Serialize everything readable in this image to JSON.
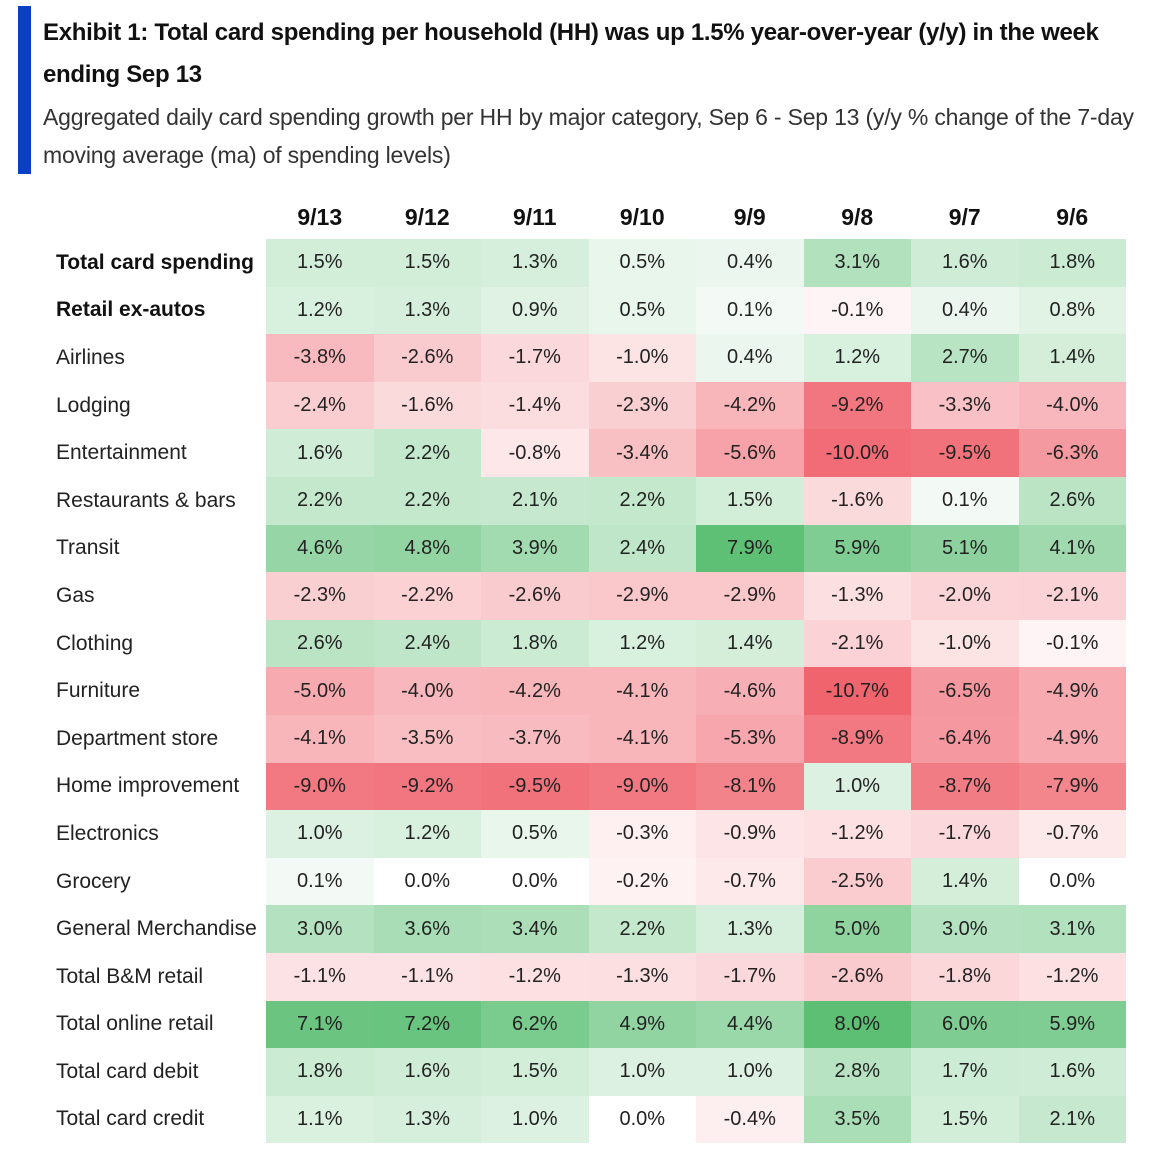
{
  "header": {
    "title": "Exhibit 1: Total card spending per household (HH) was up 1.5% year-over-year (y/y) in the week ending Sep 13",
    "subtitle": "Aggregated daily card spending growth per HH by major category, Sep 6 - Sep 13 (y/y % change of the 7-day moving average (ma) of spending levels)",
    "accent_color": "#0b3fc8"
  },
  "colors": {
    "positive_max": "#5cbf74",
    "negative_max": "#f0646e",
    "neutral": "#ffffff"
  },
  "chart_data": {
    "type": "heatmap",
    "title": "Exhibit 1: Total card spending per household (HH) was up 1.5% year-over-year (y/y) in the week ending Sep 13",
    "subtitle": "Aggregated daily card spending growth per HH by major category, Sep 6 - Sep 13 (y/y % change of the 7-day moving average (ma) of spending levels)",
    "columns": [
      "9/13",
      "9/12",
      "9/11",
      "9/10",
      "9/9",
      "9/8",
      "9/7",
      "9/6"
    ],
    "unit": "%",
    "rows": [
      {
        "label": "Total card spending",
        "bold": true,
        "values": [
          1.5,
          1.5,
          1.3,
          0.5,
          0.4,
          3.1,
          1.6,
          1.8
        ]
      },
      {
        "label": "Retail ex-autos",
        "bold": true,
        "values": [
          1.2,
          1.3,
          0.9,
          0.5,
          0.1,
          -0.1,
          0.4,
          0.8
        ]
      },
      {
        "label": "Airlines",
        "values": [
          -3.8,
          -2.6,
          -1.7,
          -1.0,
          0.4,
          1.2,
          2.7,
          1.4
        ]
      },
      {
        "label": "Lodging",
        "values": [
          -2.4,
          -1.6,
          -1.4,
          -2.3,
          -4.2,
          -9.2,
          -3.3,
          -4.0
        ]
      },
      {
        "label": "Entertainment",
        "values": [
          1.6,
          2.2,
          -0.8,
          -3.4,
          -5.6,
          -10.0,
          -9.5,
          -6.3
        ]
      },
      {
        "label": "Restaurants & bars",
        "values": [
          2.2,
          2.2,
          2.1,
          2.2,
          1.5,
          -1.6,
          0.1,
          2.6
        ]
      },
      {
        "label": "Transit",
        "values": [
          4.6,
          4.8,
          3.9,
          2.4,
          7.9,
          5.9,
          5.1,
          4.1
        ]
      },
      {
        "label": "Gas",
        "values": [
          -2.3,
          -2.2,
          -2.6,
          -2.9,
          -2.9,
          -1.3,
          -2.0,
          -2.1
        ]
      },
      {
        "label": "Clothing",
        "values": [
          2.6,
          2.4,
          1.8,
          1.2,
          1.4,
          -2.1,
          -1.0,
          -0.1
        ]
      },
      {
        "label": "Furniture",
        "values": [
          -5.0,
          -4.0,
          -4.2,
          -4.1,
          -4.6,
          -10.7,
          -6.5,
          -4.9
        ]
      },
      {
        "label": "Department store",
        "values": [
          -4.1,
          -3.5,
          -3.7,
          -4.1,
          -5.3,
          -8.9,
          -6.4,
          -4.9
        ]
      },
      {
        "label": "Home improvement",
        "values": [
          -9.0,
          -9.2,
          -9.5,
          -9.0,
          -8.1,
          1.0,
          -8.7,
          -7.9
        ]
      },
      {
        "label": "Electronics",
        "values": [
          1.0,
          1.2,
          0.5,
          -0.3,
          -0.9,
          -1.2,
          -1.7,
          -0.7
        ]
      },
      {
        "label": "Grocery",
        "values": [
          0.1,
          0.0,
          0.0,
          -0.2,
          -0.7,
          -2.5,
          1.4,
          0.0
        ]
      },
      {
        "label": "General Merchandise",
        "values": [
          3.0,
          3.6,
          3.4,
          2.2,
          1.3,
          5.0,
          3.0,
          3.1
        ]
      },
      {
        "label": "Total B&M retail",
        "values": [
          -1.1,
          -1.1,
          -1.2,
          -1.3,
          -1.7,
          -2.6,
          -1.8,
          -1.2
        ]
      },
      {
        "label": "Total online retail",
        "values": [
          7.1,
          7.2,
          6.2,
          4.9,
          4.4,
          8.0,
          6.0,
          5.9
        ]
      },
      {
        "label": "Total card debit",
        "values": [
          1.8,
          1.6,
          1.5,
          1.0,
          1.0,
          2.8,
          1.7,
          1.6
        ]
      },
      {
        "label": "Total card credit",
        "values": [
          1.1,
          1.3,
          1.0,
          0.0,
          -0.4,
          3.5,
          1.5,
          2.1
        ]
      }
    ]
  }
}
